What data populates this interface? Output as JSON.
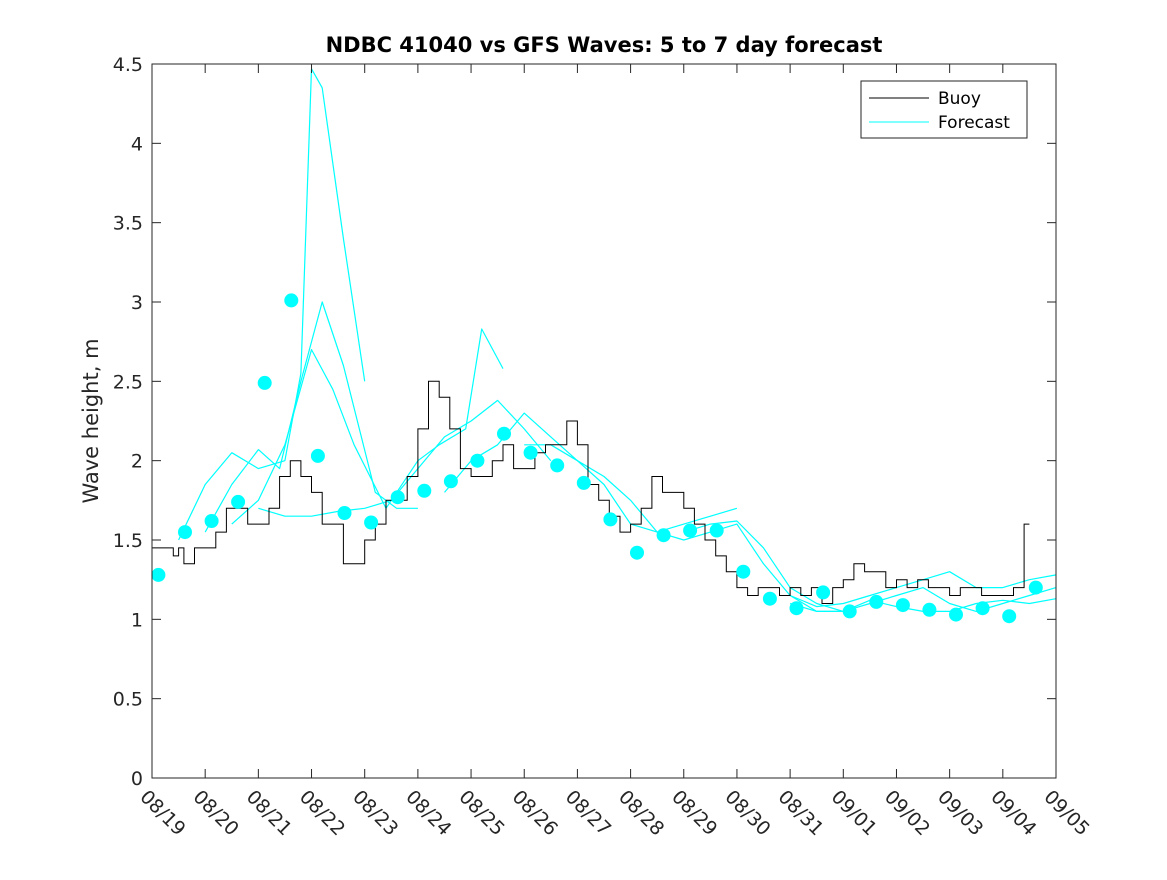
{
  "chart_data": {
    "type": "line",
    "title": "NDBC 41040 vs GFS Waves: 5 to 7 day forecast",
    "xlabel": "",
    "ylabel": "Wave height, m",
    "ylim": [
      0,
      4.5
    ],
    "xlim": [
      0,
      17
    ],
    "yticks": [
      0,
      0.5,
      1,
      1.5,
      2,
      2.5,
      3,
      3.5,
      4,
      4.5
    ],
    "ytick_labels": [
      "0",
      "0.5",
      "1",
      "1.5",
      "2",
      "2.5",
      "3",
      "3.5",
      "4",
      "4.5"
    ],
    "xtick_labels": [
      "08/19",
      "08/20",
      "08/21",
      "08/22",
      "08/23",
      "08/24",
      "08/25",
      "08/26",
      "08/27",
      "08/28",
      "08/29",
      "08/30",
      "08/31",
      "09/01",
      "09/02",
      "09/03",
      "09/04",
      "09/05"
    ],
    "legend": {
      "position": "top-right",
      "entries": [
        "Buoy",
        "Forecast"
      ]
    },
    "colors": {
      "buoy": "#000000",
      "forecast": "#00ffff",
      "axes": "#262626"
    },
    "series": [
      {
        "name": "Buoy",
        "x": [
          0,
          0.2,
          0.4,
          0.5,
          0.6,
          0.8,
          1.0,
          1.2,
          1.4,
          1.6,
          1.8,
          2.0,
          2.2,
          2.4,
          2.6,
          2.8,
          3.0,
          3.2,
          3.4,
          3.6,
          3.8,
          4.0,
          4.2,
          4.4,
          4.6,
          4.8,
          5.0,
          5.2,
          5.4,
          5.6,
          5.8,
          6.0,
          6.2,
          6.4,
          6.6,
          6.8,
          7.0,
          7.2,
          7.4,
          7.6,
          7.8,
          8.0,
          8.2,
          8.4,
          8.6,
          8.8,
          9.0,
          9.2,
          9.4,
          9.6,
          9.8,
          10.0,
          10.2,
          10.4,
          10.6,
          10.8,
          11.0,
          11.2,
          11.4,
          11.6,
          11.8,
          12.0,
          12.2,
          12.4,
          12.6,
          12.8,
          13.0,
          13.2,
          13.4,
          13.6,
          13.8,
          14.0,
          14.2,
          14.4,
          14.6,
          14.8,
          15.0,
          15.2,
          15.4,
          15.6,
          15.8,
          16.0,
          16.2,
          16.4,
          16.5
        ],
        "values": [
          1.45,
          1.45,
          1.4,
          1.45,
          1.35,
          1.45,
          1.45,
          1.55,
          1.7,
          1.7,
          1.6,
          1.6,
          1.7,
          1.9,
          2.0,
          1.9,
          1.8,
          1.6,
          1.6,
          1.35,
          1.35,
          1.5,
          1.6,
          1.75,
          1.75,
          1.9,
          2.2,
          2.5,
          2.4,
          2.2,
          1.95,
          1.9,
          1.9,
          2.0,
          2.1,
          1.95,
          1.95,
          2.05,
          2.1,
          2.1,
          2.25,
          2.1,
          1.85,
          1.75,
          1.65,
          1.55,
          1.6,
          1.7,
          1.9,
          1.8,
          1.8,
          1.7,
          1.6,
          1.5,
          1.4,
          1.3,
          1.2,
          1.15,
          1.2,
          1.2,
          1.15,
          1.2,
          1.15,
          1.2,
          1.1,
          1.2,
          1.25,
          1.35,
          1.3,
          1.3,
          1.2,
          1.25,
          1.2,
          1.25,
          1.2,
          1.2,
          1.15,
          1.2,
          1.2,
          1.15,
          1.15,
          1.15,
          1.2,
          1.6,
          1.6
        ]
      },
      {
        "name": "Forecast",
        "runs": [
          {
            "x": [
              0.5,
              1.0,
              1.5,
              2.0,
              2.5,
              2.8,
              3.0,
              3.2,
              3.6,
              4.0
            ],
            "values": [
              1.5,
              1.85,
              2.05,
              1.95,
              2.0,
              2.55,
              4.47,
              4.35,
              3.4,
              2.5
            ]
          },
          {
            "x": [
              1.0,
              1.5,
              2.0,
              2.4,
              2.8,
              3.2,
              3.6,
              4.2,
              4.6,
              5.0
            ],
            "values": [
              1.55,
              1.85,
              2.07,
              1.95,
              2.5,
              3.0,
              2.6,
              1.8,
              1.7,
              1.7
            ]
          },
          {
            "x": [
              1.5,
              2.0,
              2.5,
              3.0,
              3.4,
              3.8,
              4.4,
              5.0,
              5.4,
              5.9,
              6.2,
              6.6
            ],
            "values": [
              1.6,
              1.75,
              2.1,
              2.7,
              2.45,
              2.1,
              1.7,
              2.0,
              2.1,
              2.2,
              2.83,
              2.58
            ]
          },
          {
            "x": [
              2.0,
              2.5,
              3.0,
              3.5,
              4.0,
              4.5,
              5.0,
              5.5,
              6.0,
              6.5,
              7.0,
              7.5
            ],
            "values": [
              1.7,
              1.65,
              1.65,
              1.68,
              1.7,
              1.75,
              1.95,
              2.15,
              2.25,
              2.38,
              2.2,
              2.0
            ]
          },
          {
            "x": [
              5.5,
              6.0,
              6.5,
              7.0,
              7.5,
              8.0,
              8.5,
              9.0,
              9.5,
              10.0,
              10.5,
              11.0
            ],
            "values": [
              1.8,
              2.0,
              2.1,
              2.3,
              2.15,
              2.0,
              1.85,
              1.6,
              1.55,
              1.6,
              1.65,
              1.7
            ]
          },
          {
            "x": [
              7.0,
              7.5,
              8.0,
              8.5,
              9.0,
              9.5,
              10.0,
              10.5,
              11.0,
              11.5,
              12.0,
              12.5,
              13.0
            ],
            "values": [
              2.1,
              2.1,
              2.0,
              1.9,
              1.75,
              1.55,
              1.5,
              1.55,
              1.6,
              1.35,
              1.15,
              1.05,
              1.05
            ]
          },
          {
            "x": [
              10.0,
              10.5,
              11.0,
              11.5,
              12.0,
              12.5,
              13.0,
              13.5,
              14.0,
              14.5,
              15.0,
              15.5,
              16.0,
              16.5,
              17.0
            ],
            "values": [
              1.55,
              1.6,
              1.62,
              1.45,
              1.2,
              1.1,
              1.05,
              1.1,
              1.15,
              1.2,
              1.1,
              1.05,
              1.1,
              1.15,
              1.2
            ]
          },
          {
            "x": [
              12.0,
              12.5,
              13.0,
              13.5,
              14.0,
              14.5,
              15.0,
              15.5,
              16.0,
              16.5,
              17.0
            ],
            "values": [
              1.15,
              1.08,
              1.1,
              1.15,
              1.2,
              1.25,
              1.3,
              1.2,
              1.2,
              1.25,
              1.28
            ]
          },
          {
            "x": [
              12.0,
              12.5,
              13.0,
              13.5,
              14.0,
              14.5,
              15.0,
              15.5,
              16.0,
              16.5,
              17.0
            ],
            "values": [
              1.1,
              1.05,
              1.05,
              1.12,
              1.08,
              1.05,
              1.05,
              1.1,
              1.12,
              1.1,
              1.13
            ]
          }
        ],
        "markers": {
          "x": [
            0.12,
            0.62,
            1.12,
            1.62,
            2.12,
            2.62,
            3.12,
            3.62,
            4.12,
            4.62,
            5.12,
            5.62,
            6.12,
            6.62,
            7.12,
            7.62,
            8.12,
            8.62,
            9.12,
            9.62,
            10.12,
            10.62,
            11.12,
            11.62,
            12.12,
            12.62,
            13.12,
            13.62,
            14.12,
            14.62,
            15.12,
            15.62,
            16.12,
            16.62
          ],
          "values": [
            1.28,
            1.55,
            1.62,
            1.74,
            2.49,
            3.01,
            2.03,
            1.67,
            1.61,
            1.77,
            1.81,
            1.87,
            2.0,
            2.17,
            2.05,
            1.97,
            1.86,
            1.63,
            1.42,
            1.53,
            1.56,
            1.56,
            1.3,
            1.13,
            1.07,
            1.17,
            1.05,
            1.11,
            1.09,
            1.06,
            1.03,
            1.07,
            1.02,
            1.2
          ]
        }
      }
    ]
  }
}
